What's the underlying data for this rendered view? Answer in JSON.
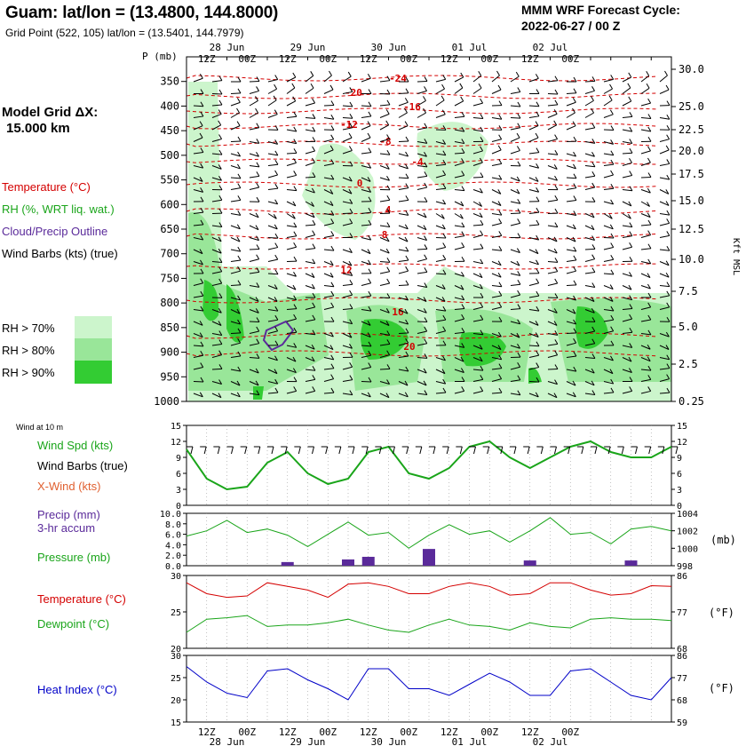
{
  "header": {
    "title": "Guam:  lat/lon = (13.4800, 144.8000)",
    "subtitle": "Grid Point (522, 105) lat/lon = (13.5401, 144.7979)",
    "cycle_line1": "MMM WRF Forecast Cycle:",
    "cycle_line2": "2022-06-27 / 00  Z"
  },
  "left_panel": {
    "model_grid_line1": "Model Grid ΔX:",
    "model_grid_line2": "15.000 km",
    "legend_temperature": "Temperature (°C)",
    "legend_rh": "RH (%, WRT liq. wat.)",
    "legend_cloud": "Cloud/Precip Outline",
    "legend_wind": "Wind Barbs (kts) (true)",
    "rh70": "RH > 70%",
    "rh80": "RH > 80%",
    "rh90": "RH > 90%",
    "wind10m": "Wind at 10 m",
    "wind_spd": "Wind Spd (kts)",
    "wind_barbs": "Wind Barbs (true)",
    "xwind": "X-Wind (kts)",
    "precip1": "Precip (mm)",
    "precip2": "3-hr accum",
    "pressure": "Pressure (mb)",
    "temperature": "Temperature (°C)",
    "dewpoint": "Dewpoint (°C)",
    "heat_index": "Heat Index (°C)",
    "kft_msl": "Kft MSL",
    "mb_unit": "(mb)",
    "f_unit": "(°F)",
    "p_mb": "P (mb)"
  },
  "colors": {
    "temperature": "#d40000",
    "rh": "#1aa51a",
    "cloud": "#5a2a9a",
    "rh70": "#ccf5cc",
    "rh80": "#99e699",
    "rh90": "#33cc33",
    "heat": "#0000c8"
  },
  "time_axis": {
    "top_dates": [
      "28 Jun",
      "29 Jun",
      "30 Jun",
      "01 Jul",
      "02 Jul"
    ],
    "hours": [
      "12Z",
      "00Z",
      "12Z",
      "00Z",
      "12Z",
      "00Z",
      "12Z",
      "00Z",
      "12Z",
      "00Z"
    ]
  },
  "chart_data": [
    {
      "type": "heatmap",
      "name": "time-height cross section",
      "pressure_levels": [
        350,
        400,
        450,
        500,
        550,
        600,
        650,
        700,
        750,
        800,
        850,
        900,
        950,
        1000
      ],
      "height_kft": [
        "30.0",
        "25.0",
        "22.5",
        "20.0",
        "17.5",
        "15.0",
        "12.5",
        "10.0",
        "7.5",
        "5.0",
        "2.5",
        "0.25"
      ],
      "temperature_labels": [
        "-24",
        "-20",
        "-16",
        "-12",
        "-8",
        "-4",
        "0",
        "4",
        "8",
        "12",
        "16",
        "20"
      ]
    },
    {
      "type": "line",
      "name": "wind at 10 m",
      "left_ticks": [
        "15",
        "12",
        "9",
        "6",
        "3",
        "0"
      ],
      "right_ticks": [
        "15",
        "12",
        "9",
        "6",
        "3",
        "0"
      ],
      "ylim": [
        0,
        15
      ],
      "x_hours": [
        0,
        6,
        12,
        18,
        24,
        30,
        36,
        42,
        48,
        54,
        60,
        66,
        72,
        78,
        84,
        90,
        96,
        102,
        108,
        114,
        120,
        126,
        132,
        138,
        144
      ],
      "wind_speed": [
        10.5,
        5,
        3,
        3.5,
        8,
        10,
        6,
        4,
        5,
        10,
        11,
        6,
        5,
        7,
        11,
        12,
        9,
        7,
        9,
        11,
        12,
        10,
        9,
        9,
        11
      ]
    },
    {
      "type": "line",
      "name": "precip and pressure",
      "left_ticks": [
        "10.0",
        "8.0",
        "6.0",
        "4.0",
        "2.0",
        "0.0"
      ],
      "right_ticks": [
        "1004",
        "1002",
        "1000",
        "998"
      ],
      "precip_mm": [
        0,
        0,
        0,
        0,
        0,
        0.7,
        0,
        0,
        1.2,
        1.7,
        0,
        0,
        3.2,
        0,
        0,
        0,
        0,
        1.0,
        0,
        0,
        0,
        0,
        1.0,
        0,
        0
      ],
      "pressure_mb": [
        1001.4,
        1002.0,
        1003.2,
        1001.8,
        1002.2,
        1001.5,
        1000.2,
        1001.6,
        1003.0,
        1001.5,
        1001.8,
        1000.0,
        1001.5,
        1002.7,
        1001.6,
        1002.0,
        1000.7,
        1002.0,
        1003.5,
        1001.6,
        1001.8,
        1000.5,
        1002.2,
        1002.5,
        1002.0
      ]
    },
    {
      "type": "line",
      "name": "temperature and dewpoint",
      "left_ticks": [
        "30",
        "25",
        "20"
      ],
      "right_ticks": [
        "86",
        "77",
        "68"
      ],
      "ylim": [
        20,
        30
      ],
      "temperature_c": [
        29,
        27.5,
        27,
        27.2,
        29,
        28.5,
        28,
        27,
        28.8,
        29,
        28.5,
        27.5,
        27.5,
        28.5,
        29,
        28.5,
        27.3,
        27.5,
        29,
        29,
        28,
        27.3,
        27.5,
        28.6,
        28.5
      ],
      "dewpoint_c": [
        22.2,
        24,
        24.2,
        24.5,
        23,
        23.2,
        23.2,
        23.5,
        24,
        23.2,
        22.5,
        22.2,
        23.2,
        24,
        23.2,
        23,
        22.5,
        23.5,
        23,
        22.8,
        24,
        24.2,
        24,
        24,
        23.8
      ]
    },
    {
      "type": "line",
      "name": "heat index",
      "left_ticks": [
        "30",
        "25",
        "20",
        "15"
      ],
      "right_ticks": [
        "86",
        "77",
        "68",
        "59"
      ],
      "ylim": [
        15,
        30
      ],
      "heat_index_c": [
        27.5,
        24,
        21.5,
        20.5,
        26.5,
        27,
        24.5,
        22.5,
        20,
        27,
        27,
        22.5,
        22.5,
        21,
        23.5,
        26,
        24,
        21,
        21,
        26.5,
        27,
        24,
        21,
        20,
        25
      ]
    }
  ]
}
